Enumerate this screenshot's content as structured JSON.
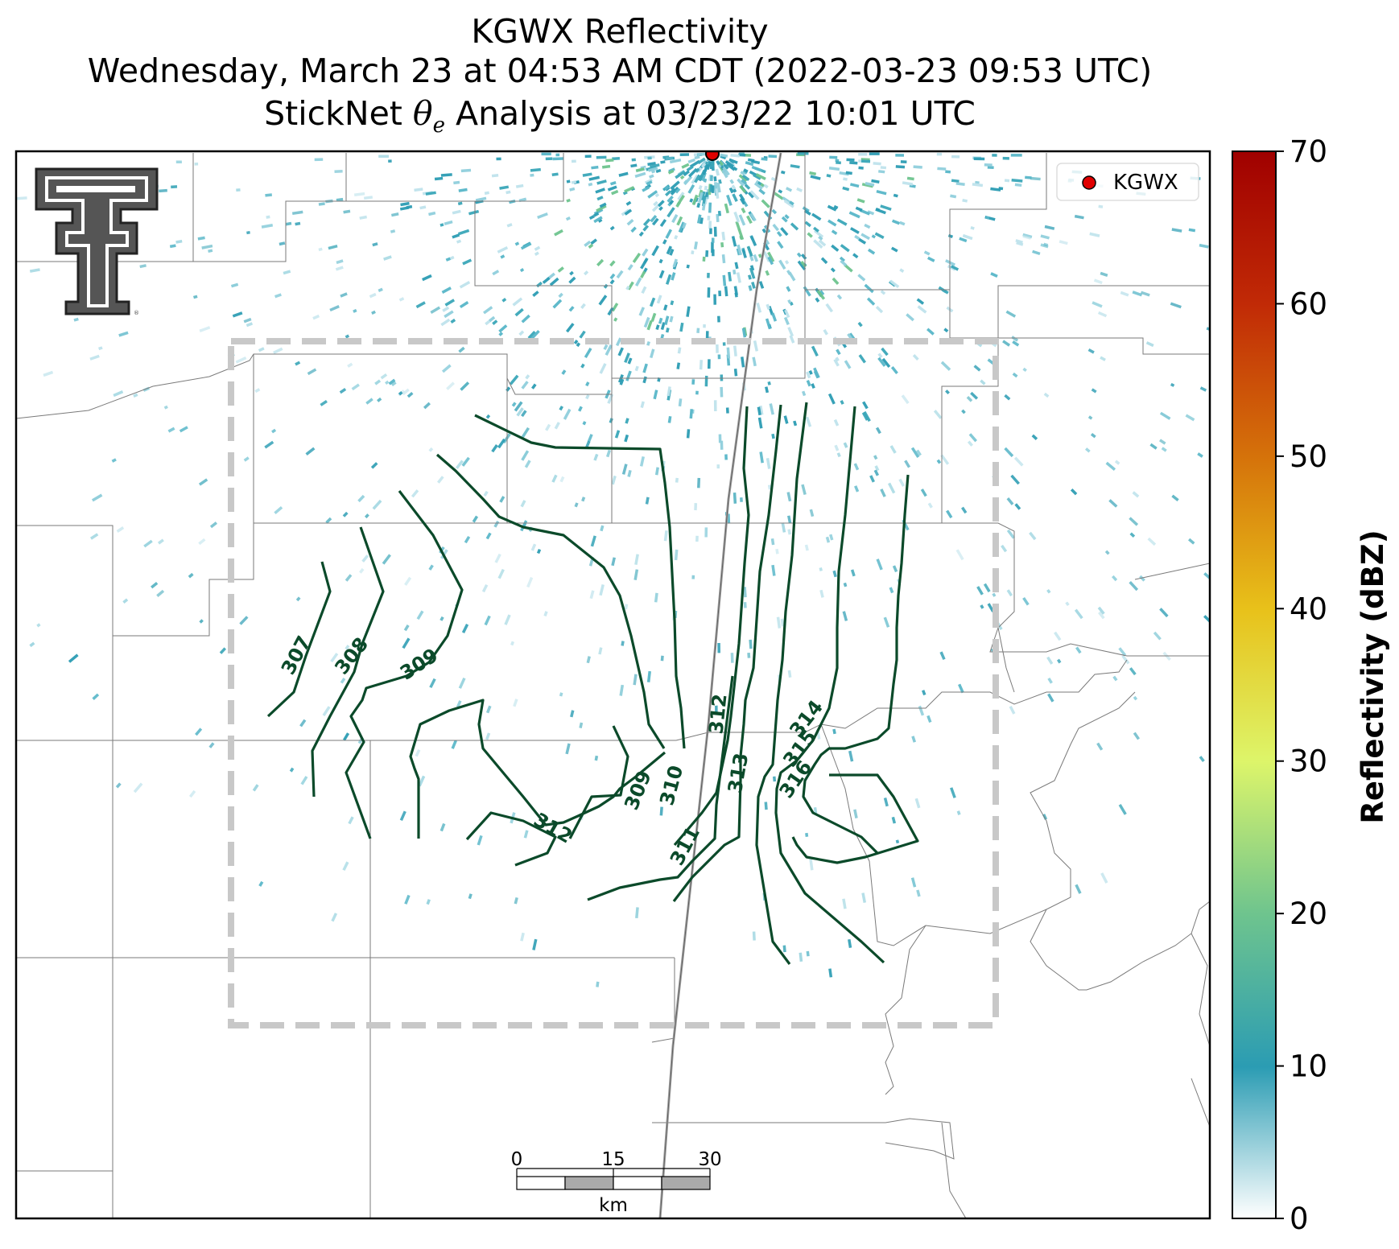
{
  "title": {
    "line1": "KGWX Reflectivity",
    "line2": "Wednesday, March 23 at 04:53 AM CDT (2022-03-23 09:53 UTC)",
    "line3_prefix": "StickNet ",
    "line3_symbol": "θ",
    "line3_subscript": "e",
    "line3_suffix": " Analysis at 03/23/22 10:01 UTC"
  },
  "legend": {
    "label": "KGWX",
    "marker_color": "#e00000"
  },
  "radar_site": {
    "name": "KGWX"
  },
  "logo": {
    "name": "texas-tech-double-t-logo"
  },
  "colorbar": {
    "label": "Reflectivity (dBZ)",
    "range": [
      0,
      70
    ],
    "ticks": [
      "0",
      "10",
      "20",
      "30",
      "40",
      "50",
      "60",
      "70"
    ],
    "colors": [
      "#ffffff",
      "#2b9cb3",
      "#6ec48e",
      "#ddf56a",
      "#e8c11a",
      "#d5720a",
      "#c12a06",
      "#a00000"
    ]
  },
  "scale_bar": {
    "ticks": [
      "0",
      "15",
      "30"
    ],
    "unit": "km"
  },
  "contours": {
    "color": "#0b4a2a",
    "levels": [
      "307",
      "308",
      "309",
      "309",
      "310",
      "311",
      "312",
      "312",
      "313",
      "314",
      "315",
      "316"
    ]
  },
  "analysis_box": {
    "style": "dashed",
    "color": "#c8c8c8"
  }
}
